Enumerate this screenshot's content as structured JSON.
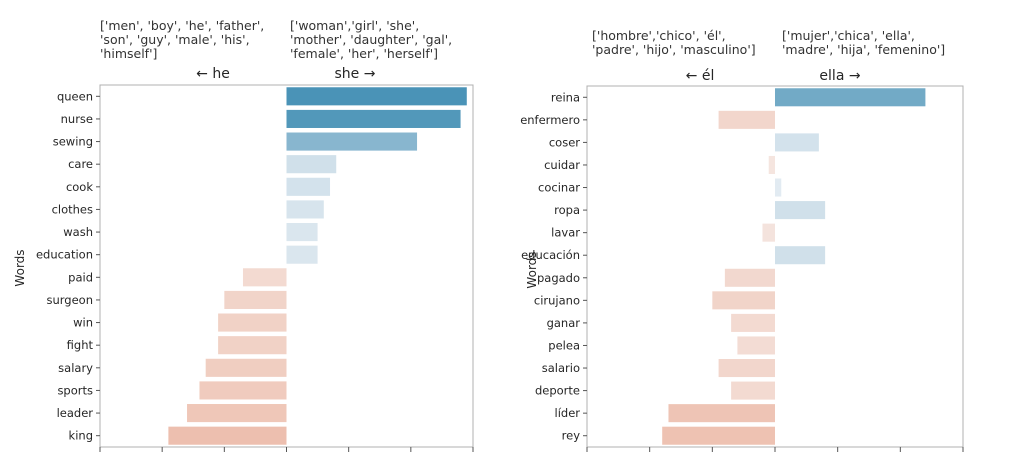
{
  "chart_data": [
    {
      "type": "bar",
      "orientation": "horizontal",
      "ylabel": "Words",
      "left_label": "← he",
      "right_label": "she →",
      "left_words_annotation": [
        "['men', 'boy', 'he', 'father',",
        "'son', 'guy', 'male', 'his',",
        "'himself']"
      ],
      "right_words_annotation": [
        "['woman','girl', 'she',",
        "'mother', 'daughter', 'gal',",
        "'female', 'her', 'herself']"
      ],
      "xlim": [
        -3,
        3
      ],
      "categories": [
        "queen",
        "nurse",
        "sewing",
        "care",
        "cook",
        "clothes",
        "wash",
        "education",
        "paid",
        "surgeon",
        "win",
        "fight",
        "salary",
        "sports",
        "leader",
        "king"
      ],
      "values": [
        2.9,
        2.8,
        2.1,
        0.8,
        0.7,
        0.6,
        0.5,
        0.5,
        -0.7,
        -1.0,
        -1.1,
        -1.1,
        -1.3,
        -1.4,
        -1.6,
        -1.9
      ]
    },
    {
      "type": "bar",
      "orientation": "horizontal",
      "ylabel": "Words",
      "left_label": "← él",
      "right_label": "ella →",
      "left_words_annotation": [
        "['hombre','chico', 'él',",
        "'padre', 'hijo', 'masculino']"
      ],
      "right_words_annotation": [
        "['mujer','chica', 'ella',",
        "'madre', 'hija', 'femenino']"
      ],
      "xlim": [
        -3,
        3
      ],
      "categories": [
        "reina",
        "enfermero",
        "coser",
        "cuidar",
        "cocinar",
        "ropa",
        "lavar",
        "educación",
        "pagado",
        "cirujano",
        "ganar",
        "pelea",
        "salario",
        "deporte",
        "líder",
        "rey"
      ],
      "values": [
        2.4,
        -0.9,
        0.7,
        -0.1,
        0.1,
        0.8,
        -0.2,
        0.8,
        -0.8,
        -1.0,
        -0.7,
        -0.6,
        -0.9,
        -0.7,
        -1.7,
        -1.8
      ]
    }
  ],
  "colors": {
    "positive_strong": "#4a93b7",
    "positive_light": "#e3ebf2",
    "negative_strong": "#e8a68e",
    "negative_light": "#f5e6e0",
    "axis": "#b0b0b0"
  }
}
